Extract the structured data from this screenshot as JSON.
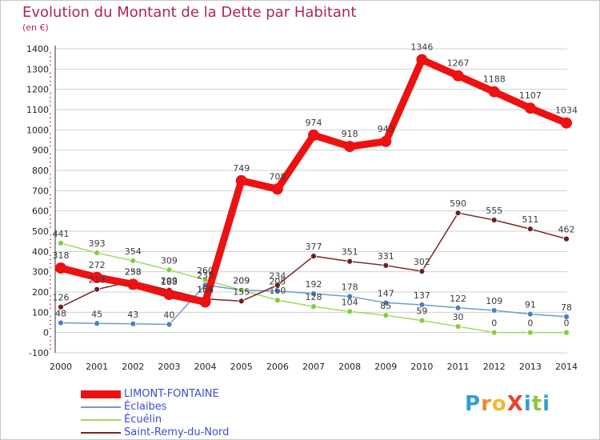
{
  "title": "Evolution du Montant de la Dette par Habitant",
  "subtitle": "(en €)",
  "logo_text": "ProXiti",
  "chart_data": {
    "type": "line",
    "title": "Evolution du Montant de la Dette par Habitant",
    "subtitle": "(en €)",
    "x": [
      2000,
      2001,
      2002,
      2003,
      2004,
      2005,
      2006,
      2007,
      2008,
      2009,
      2010,
      2011,
      2012,
      2013,
      2014
    ],
    "ylim": [
      -100,
      1400
    ],
    "yticks": [
      -100,
      0,
      100,
      200,
      300,
      400,
      500,
      600,
      700,
      800,
      900,
      1000,
      1100,
      1200,
      1300,
      1400
    ],
    "grid": "horizontal",
    "legend_position": "bottom-left",
    "series": [
      {
        "name": "LIMONT-FONTAINE",
        "color": "#ee1111",
        "marker_color": "#ee1111",
        "width": "thick",
        "values": [
          318,
          272,
          238,
          188,
          151,
          749,
          708,
          974,
          918,
          943,
          1346,
          1267,
          1188,
          1107,
          1034
        ],
        "labels": [
          "318",
          "272",
          "238",
          "188",
          "151",
          "749",
          "708",
          "974",
          "918",
          "943",
          "1346",
          "1267",
          "1188",
          "1107",
          "1034"
        ]
      },
      {
        "name": "Éclaibes",
        "color": "#6e9ad1",
        "marker_color": "#4a7fc4",
        "width": "thin",
        "values": [
          48,
          45,
          43,
          40,
          235,
          209,
          205,
          192,
          178,
          147,
          137,
          122,
          109,
          91,
          78
        ],
        "labels": [
          "48",
          "45",
          "43",
          "40",
          "235",
          "209",
          "205",
          "192",
          "178",
          "147",
          "137",
          "122",
          "109",
          "91",
          "78"
        ]
      },
      {
        "name": "Écuélin",
        "color": "#9bdc5f",
        "marker_color": "#7fcf3a",
        "width": "thin",
        "values": [
          441,
          393,
          354,
          309,
          260,
          209,
          160,
          128,
          104,
          85,
          59,
          30,
          0,
          0,
          0
        ],
        "labels": [
          "441",
          "393",
          "354",
          "309",
          "260",
          "209",
          "160",
          "128",
          "104",
          "85",
          "59",
          "30",
          "0",
          "0",
          "0"
        ]
      },
      {
        "name": "Saint-Remy-du-Nord",
        "color": "#7a2626",
        "marker_color": "#6e1f1f",
        "width": "thin",
        "values": [
          126,
          213,
          253,
          209,
          166,
          155,
          234,
          377,
          351,
          331,
          302,
          590,
          555,
          511,
          462
        ],
        "labels": [
          "126",
          "213",
          "253",
          "209",
          "166",
          "155",
          "234",
          "377",
          "351",
          "331",
          "302",
          "590",
          "555",
          "511",
          "462"
        ]
      }
    ]
  }
}
